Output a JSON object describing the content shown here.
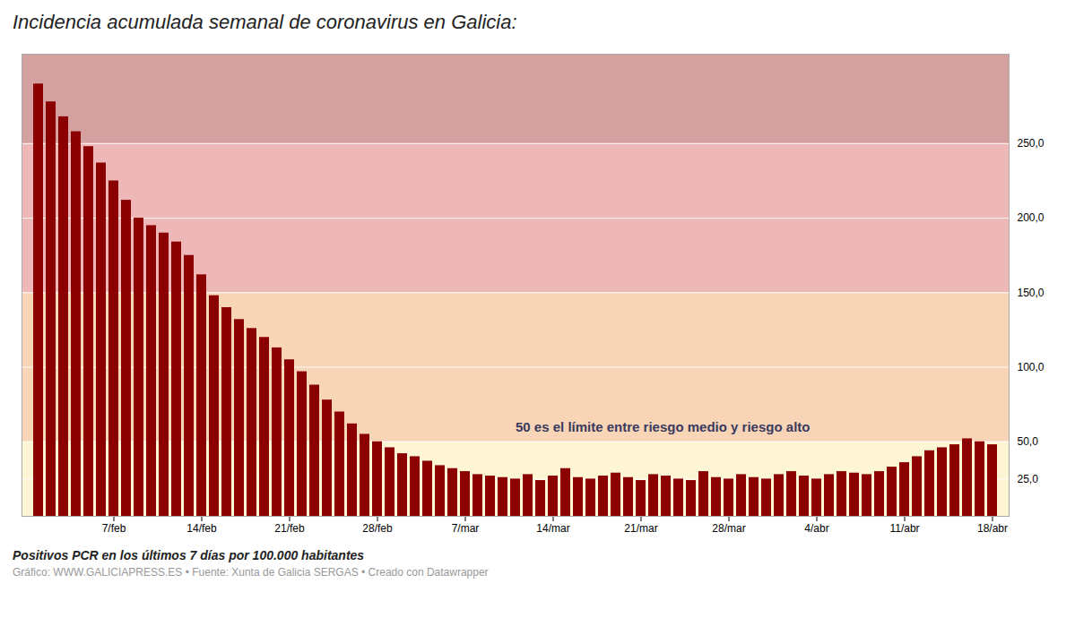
{
  "chart_data": {
    "type": "bar",
    "title": "Incidencia acumulada semanal de coronavirus en Galicia:",
    "ylabel": "Positivos PCR en los últimos 7 días por 100.000 habitantes",
    "source": "Gráfico: WWW.GALICIAPRESS.ES • Fuente: Xunta de Galicia SERGAS • Creado con Datawrapper",
    "annotation": "50 es el límite entre riesgo medio y riesgo alto",
    "color": "#8b0000",
    "zone_limits": [
      0,
      50,
      150,
      250,
      310
    ],
    "zone_colors": [
      "#fdf5d4",
      "#f9d5b8",
      "#efb8b8",
      "#d4a0a0"
    ],
    "categories": [
      null,
      null,
      null,
      null,
      null,
      null,
      "7/feb",
      null,
      null,
      null,
      null,
      null,
      null,
      "14/feb",
      null,
      null,
      null,
      null,
      null,
      null,
      "21/feb",
      null,
      null,
      null,
      null,
      null,
      null,
      "28/feb",
      null,
      null,
      null,
      null,
      null,
      null,
      "7/mar",
      null,
      null,
      null,
      null,
      null,
      null,
      "14/mar",
      null,
      null,
      null,
      null,
      null,
      null,
      "21/mar",
      null,
      null,
      null,
      null,
      null,
      null,
      "28/mar",
      null,
      null,
      null,
      null,
      null,
      null,
      "4/abr",
      null,
      null,
      null,
      null,
      null,
      null,
      "11/abr",
      null,
      null,
      null,
      null,
      null,
      null,
      "18/abr"
    ],
    "values": [
      290,
      278,
      268,
      258,
      248,
      237,
      225,
      212,
      200,
      195,
      190,
      184,
      175,
      162,
      148,
      140,
      132,
      126,
      120,
      113,
      105,
      97,
      88,
      78,
      70,
      62,
      55,
      50,
      46,
      42,
      40,
      37,
      34,
      32,
      30,
      28,
      27,
      26,
      25,
      28,
      24,
      27,
      32,
      26,
      25,
      27,
      29,
      26,
      24,
      28,
      27,
      25,
      24,
      30,
      26,
      25,
      28,
      26,
      25,
      28,
      30,
      27,
      25,
      28,
      30,
      29,
      28,
      30,
      33,
      36,
      40,
      44,
      46,
      48,
      52,
      50,
      48
    ],
    "ylim": [
      0,
      310
    ],
    "yticks": [
      {
        "value": 25.0,
        "label": "25,0"
      },
      {
        "value": 50.0,
        "label": "50,0"
      },
      {
        "value": 100.0,
        "label": "100,0"
      },
      {
        "value": 150.0,
        "label": "150,0"
      },
      {
        "value": 200.0,
        "label": "200,0"
      },
      {
        "value": 250.0,
        "label": "250,0"
      }
    ],
    "grid": true
  }
}
